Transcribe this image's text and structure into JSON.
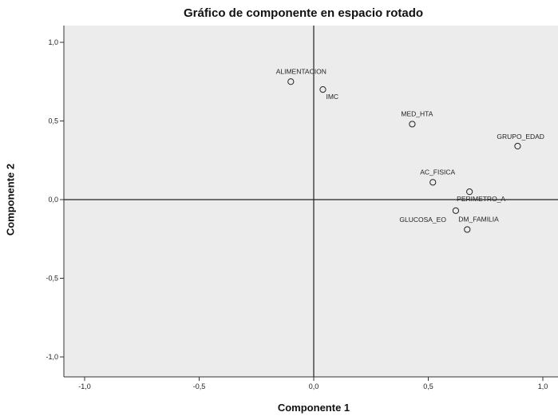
{
  "chart_data": {
    "type": "scatter",
    "title": "Gráfico de componente en espacio rotado",
    "xlabel": "Componente 1",
    "ylabel": "Componente 2",
    "xlim": [
      -1.1,
      1.1
    ],
    "ylim": [
      -1.1,
      1.1
    ],
    "xticks": [
      "-1,0",
      "-0,5",
      "0,0",
      "0,5",
      "1,0"
    ],
    "yticks": [
      "1,0",
      "0,5",
      "0,0",
      "-0,5",
      "-1,0"
    ],
    "grid": false,
    "background": "#ececec",
    "marker": "open-circle",
    "points": [
      {
        "label": "ALIMENTACION",
        "x": -0.1,
        "y": 0.75
      },
      {
        "label": "IMC",
        "x": 0.04,
        "y": 0.7
      },
      {
        "label": "MED_HTA",
        "x": 0.43,
        "y": 0.48
      },
      {
        "label": "GRUPO_EDAD",
        "x": 0.89,
        "y": 0.34
      },
      {
        "label": "AC_FISICA",
        "x": 0.52,
        "y": 0.11
      },
      {
        "label": "PERIMETRO_A",
        "x": 0.68,
        "y": 0.05
      },
      {
        "label": "GLUCOSA_EO",
        "x": 0.62,
        "y": -0.07
      },
      {
        "label": "DM_FAMILIA",
        "x": 0.67,
        "y": -0.19
      }
    ]
  }
}
